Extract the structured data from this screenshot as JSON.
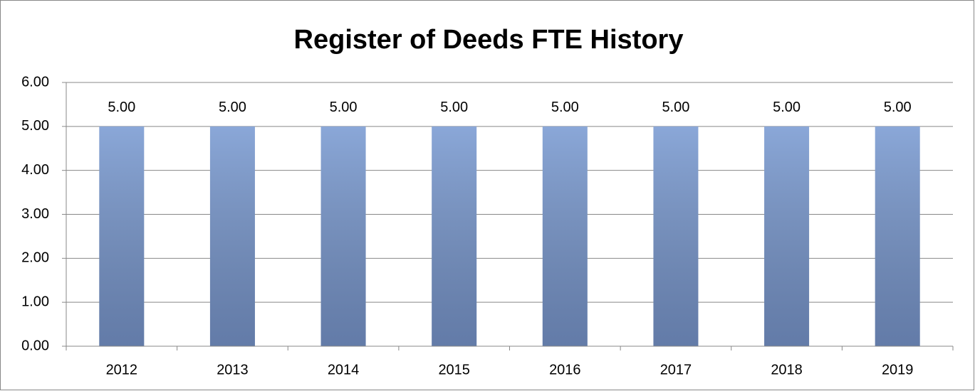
{
  "chart_data": {
    "type": "bar",
    "title": "Register of Deeds FTE History",
    "categories": [
      "2012",
      "2013",
      "2014",
      "2015",
      "2016",
      "2017",
      "2018",
      "2019"
    ],
    "values": [
      5,
      5,
      5,
      5,
      5,
      5,
      5,
      5
    ],
    "value_labels": [
      "5.00",
      "5.00",
      "5.00",
      "5.00",
      "5.00",
      "5.00",
      "5.00",
      "5.00"
    ],
    "color": "#8aa7d8",
    "ylim": [
      0,
      6
    ],
    "yticks": [
      {
        "value": 0,
        "label": "0.00"
      },
      {
        "value": 1,
        "label": "1.00"
      },
      {
        "value": 2,
        "label": "2.00"
      },
      {
        "value": 3,
        "label": "3.00"
      },
      {
        "value": 4,
        "label": "4.00"
      },
      {
        "value": 5,
        "label": "5.00"
      },
      {
        "value": 6,
        "label": "6.00"
      }
    ],
    "grid": true
  }
}
